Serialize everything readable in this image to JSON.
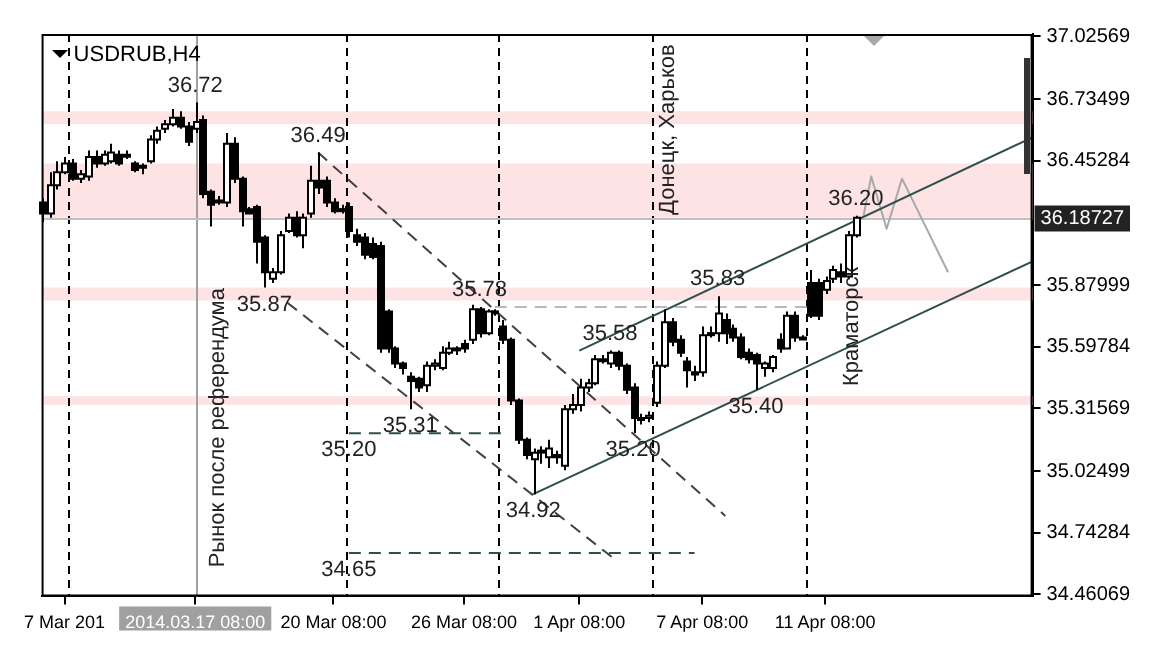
{
  "chart_data": {
    "type": "candlestick",
    "title": "USDRUB,H4",
    "categories": [
      null,
      null,
      null,
      "7 Mar 201",
      null,
      null,
      null,
      null,
      null,
      null,
      null,
      null,
      null,
      null,
      null,
      null,
      null,
      null,
      null,
      null,
      "2014.03.17 08:00",
      null,
      null,
      null,
      null,
      null,
      null,
      null,
      null,
      null,
      null,
      null,
      null,
      null,
      null,
      null,
      null,
      null,
      "20 Mar 08:00",
      null,
      null,
      null,
      null,
      null,
      null,
      null,
      null,
      null,
      null,
      null,
      null,
      null,
      null,
      null,
      null,
      "26 Mar 08:00",
      null,
      null,
      null,
      null,
      null,
      null,
      null,
      null,
      null,
      null,
      null,
      null,
      null,
      null,
      "1 Apr 08:00",
      null,
      null,
      null,
      null,
      null,
      null,
      null,
      null,
      null,
      null,
      null,
      null,
      null,
      null,
      null,
      "7 Apr 08:00",
      null,
      null,
      null,
      null,
      null,
      null,
      null,
      null,
      null,
      null,
      null,
      null,
      null,
      null,
      null,
      "11 Apr 08:00",
      null,
      null,
      null,
      null,
      null,
      null,
      null,
      null,
      null,
      null,
      null,
      null,
      null,
      null,
      null,
      null,
      null,
      null,
      null,
      null,
      null,
      null,
      null,
      null,
      null,
      null,
      null
    ],
    "ohlc": [
      [
        36.26,
        36.28,
        36.17,
        36.21
      ],
      [
        36.21,
        36.4,
        36.19,
        36.34
      ],
      [
        36.34,
        36.45,
        36.32,
        36.4
      ],
      [
        36.4,
        36.47,
        36.39,
        36.44
      ],
      [
        36.44,
        36.46,
        36.36,
        36.37
      ],
      [
        36.37,
        36.41,
        36.35,
        36.39
      ],
      [
        36.38,
        36.5,
        36.36,
        36.47
      ],
      [
        36.47,
        36.5,
        36.42,
        36.44
      ],
      [
        36.44,
        36.5,
        36.43,
        36.48
      ],
      [
        36.45,
        36.53,
        36.44,
        36.49
      ],
      [
        36.48,
        36.5,
        36.43,
        36.44
      ],
      [
        36.48,
        36.5,
        36.46,
        36.48
      ],
      [
        36.44,
        36.45,
        36.4,
        36.41
      ],
      [
        36.43,
        36.44,
        36.39,
        36.42
      ],
      [
        36.45,
        36.57,
        36.44,
        36.55
      ],
      [
        36.55,
        36.61,
        36.53,
        36.59
      ],
      [
        36.6,
        36.64,
        36.58,
        36.62
      ],
      [
        36.62,
        36.69,
        36.61,
        36.65
      ],
      [
        36.65,
        36.68,
        36.6,
        36.61
      ],
      [
        36.61,
        36.63,
        36.52,
        36.54
      ],
      [
        36.6,
        36.72,
        36.58,
        36.63
      ],
      [
        36.64,
        36.66,
        36.28,
        36.3
      ],
      [
        36.31,
        36.32,
        36.15,
        36.25
      ],
      [
        36.27,
        36.29,
        36.25,
        36.27
      ],
      [
        36.26,
        36.58,
        36.24,
        36.53
      ],
      [
        36.53,
        36.56,
        36.35,
        36.37
      ],
      [
        36.37,
        36.38,
        36.15,
        36.22
      ],
      [
        36.23,
        36.24,
        36.21,
        36.21
      ],
      [
        36.24,
        36.25,
        35.98,
        36.08
      ],
      [
        36.1,
        36.11,
        35.87,
        35.94
      ],
      [
        35.91,
        35.96,
        35.89,
        35.94
      ],
      [
        35.94,
        36.13,
        35.93,
        36.11
      ],
      [
        36.13,
        36.21,
        36.12,
        36.19
      ],
      [
        36.19,
        36.22,
        36.1,
        36.11
      ],
      [
        36.11,
        36.21,
        36.05,
        36.19
      ],
      [
        36.21,
        36.43,
        36.19,
        36.36
      ],
      [
        36.36,
        36.49,
        36.3,
        36.33
      ],
      [
        36.36,
        36.38,
        36.24,
        36.26
      ],
      [
        36.26,
        36.28,
        36.21,
        36.22
      ],
      [
        36.23,
        36.25,
        36.21,
        36.23
      ],
      [
        36.24,
        36.26,
        36.1,
        36.13
      ],
      [
        36.11,
        36.14,
        36.06,
        36.08
      ],
      [
        36.1,
        36.12,
        36.0,
        36.02
      ],
      [
        36.07,
        36.1,
        36.0,
        36.01
      ],
      [
        36.06,
        36.08,
        35.57,
        35.59
      ],
      [
        35.76,
        35.77,
        35.57,
        35.59
      ],
      [
        35.59,
        35.6,
        35.5,
        35.52
      ],
      [
        35.52,
        35.53,
        35.47,
        35.5
      ],
      [
        35.46,
        35.48,
        35.31,
        35.44
      ],
      [
        35.45,
        35.46,
        35.39,
        35.41
      ],
      [
        35.42,
        35.53,
        35.39,
        35.51
      ],
      [
        35.51,
        35.54,
        35.49,
        35.52
      ],
      [
        35.5,
        35.6,
        35.49,
        35.57
      ],
      [
        35.57,
        35.62,
        35.56,
        35.59
      ],
      [
        35.59,
        35.6,
        35.56,
        35.59
      ],
      [
        35.61,
        35.63,
        35.57,
        35.59
      ],
      [
        35.63,
        35.79,
        35.61,
        35.77
      ],
      [
        35.77,
        35.78,
        35.64,
        35.66
      ],
      [
        35.66,
        35.77,
        35.65,
        35.76
      ],
      [
        35.76,
        35.77,
        35.74,
        35.76
      ],
      [
        35.69,
        35.72,
        35.61,
        35.63
      ],
      [
        35.63,
        35.64,
        35.33,
        35.35
      ],
      [
        35.35,
        35.36,
        35.15,
        35.17
      ],
      [
        35.17,
        35.18,
        35.08,
        35.1
      ],
      [
        35.08,
        35.13,
        34.92,
        35.11
      ],
      [
        35.12,
        35.14,
        35.06,
        35.12
      ],
      [
        35.09,
        35.17,
        35.04,
        35.13
      ],
      [
        35.1,
        35.12,
        35.06,
        35.09
      ],
      [
        35.05,
        35.33,
        35.03,
        35.31
      ],
      [
        35.31,
        35.38,
        35.29,
        35.33
      ],
      [
        35.33,
        35.45,
        35.3,
        35.41
      ],
      [
        35.41,
        35.45,
        35.39,
        35.43
      ],
      [
        35.43,
        35.56,
        35.42,
        35.54
      ],
      [
        35.54,
        35.56,
        35.52,
        35.54
      ],
      [
        35.52,
        35.58,
        35.5,
        35.57
      ],
      [
        35.57,
        35.58,
        35.49,
        35.51
      ],
      [
        35.51,
        35.52,
        35.38,
        35.4
      ],
      [
        35.41,
        35.43,
        35.2,
        35.27
      ],
      [
        35.27,
        35.29,
        35.24,
        35.27
      ],
      [
        35.27,
        35.3,
        35.25,
        35.28
      ],
      [
        35.34,
        35.53,
        35.32,
        35.51
      ],
      [
        35.51,
        35.77,
        35.5,
        35.71
      ],
      [
        35.71,
        35.73,
        35.6,
        35.62
      ],
      [
        35.63,
        35.65,
        35.55,
        35.57
      ],
      [
        35.53,
        35.55,
        35.41,
        35.49
      ],
      [
        35.48,
        35.51,
        35.44,
        35.47
      ],
      [
        35.48,
        35.69,
        35.46,
        35.65
      ],
      [
        35.66,
        35.69,
        35.64,
        35.66
      ],
      [
        35.66,
        35.83,
        35.62,
        35.75
      ],
      [
        35.72,
        35.75,
        35.61,
        35.66
      ],
      [
        35.68,
        35.7,
        35.62,
        35.64
      ],
      [
        35.64,
        35.66,
        35.54,
        35.55
      ],
      [
        35.57,
        35.59,
        35.52,
        35.54
      ],
      [
        35.56,
        35.57,
        35.4,
        35.52
      ],
      [
        35.5,
        35.53,
        35.46,
        35.52
      ],
      [
        35.5,
        35.56,
        35.48,
        35.55
      ],
      [
        35.63,
        35.66,
        35.57,
        35.59
      ],
      [
        35.59,
        35.76,
        35.59,
        35.74
      ],
      [
        35.74,
        35.76,
        35.62,
        35.64
      ],
      [
        35.64,
        35.65,
        35.63,
        35.64
      ],
      [
        35.89,
        35.95,
        35.73,
        35.74
      ],
      [
        35.89,
        35.91,
        35.72,
        35.74
      ],
      [
        35.86,
        35.92,
        35.84,
        35.9
      ],
      [
        35.91,
        35.97,
        35.89,
        35.95
      ],
      [
        35.94,
        35.98,
        35.89,
        35.92
      ],
      [
        35.92,
        36.13,
        35.91,
        36.11
      ],
      [
        36.11,
        36.2,
        36.1,
        36.19
      ],
      null,
      null,
      null,
      null,
      null,
      null,
      null,
      null,
      null,
      null,
      null,
      null,
      null,
      null,
      null,
      null,
      null,
      null,
      null,
      null,
      null,
      null,
      null
    ],
    "series": [
      {
        "type": "line",
        "color": "#2f4f4f",
        "values": [
          null,
          null,
          null,
          null,
          null,
          null,
          null,
          null,
          null,
          null,
          null,
          null,
          null,
          null,
          null,
          null,
          null,
          null,
          null,
          null,
          null,
          null,
          null,
          null,
          null,
          null,
          null,
          null,
          null,
          null,
          null,
          null,
          null,
          null,
          null,
          null,
          null,
          null,
          null,
          null,
          null,
          null,
          null,
          null,
          null,
          null,
          null,
          null,
          null,
          null,
          null,
          null,
          null,
          null,
          null,
          null,
          null,
          null,
          null,
          null,
          null,
          null,
          null,
          null,
          null,
          null,
          null,
          null,
          null,
          null,
          35.58,
          null,
          null,
          null,
          null,
          null,
          null,
          null,
          null,
          null,
          null,
          null,
          null,
          null,
          null,
          null,
          null,
          null,
          null,
          null,
          null,
          null,
          null,
          null,
          null,
          null,
          null,
          null,
          null,
          null,
          null,
          null,
          null,
          null,
          null,
          null,
          null,
          null,
          null,
          null,
          null,
          null,
          null,
          null,
          null,
          null,
          null,
          null,
          null,
          null,
          null,
          null,
          null,
          null,
          null,
          null,
          null,
          null,
          null,
          36.56
        ]
      },
      {
        "type": "line",
        "color": "#2f4f4f",
        "values": [
          null,
          null,
          null,
          null,
          null,
          null,
          null,
          null,
          null,
          null,
          null,
          null,
          null,
          null,
          null,
          null,
          null,
          null,
          null,
          null,
          null,
          null,
          null,
          null,
          null,
          null,
          null,
          null,
          null,
          null,
          null,
          null,
          null,
          null,
          null,
          null,
          null,
          null,
          null,
          null,
          null,
          null,
          null,
          null,
          null,
          null,
          null,
          null,
          null,
          null,
          null,
          null,
          null,
          null,
          null,
          null,
          null,
          null,
          null,
          null,
          null,
          null,
          null,
          null,
          34.92,
          null,
          null,
          null,
          null,
          null,
          null,
          null,
          null,
          null,
          null,
          null,
          null,
          null,
          null,
          null,
          null,
          null,
          null,
          null,
          null,
          null,
          null,
          null,
          null,
          null,
          null,
          null,
          null,
          null,
          null,
          null,
          null,
          null,
          null,
          null,
          null,
          null,
          null,
          null,
          null,
          null,
          null,
          null,
          null,
          null,
          null,
          null,
          null,
          null,
          null,
          null,
          null,
          null,
          null,
          null,
          null,
          null,
          null,
          null,
          null,
          null,
          null,
          null,
          null,
          35.99
        ]
      },
      {
        "type": "line",
        "color": "#404040",
        "line_style": "dashed",
        "values": [
          null,
          null,
          null,
          null,
          null,
          null,
          null,
          null,
          null,
          null,
          null,
          null,
          null,
          null,
          null,
          null,
          null,
          null,
          null,
          null,
          null,
          null,
          null,
          null,
          null,
          null,
          null,
          null,
          null,
          null,
          null,
          null,
          null,
          null,
          null,
          null,
          36.49,
          null,
          null,
          null,
          null,
          null,
          null,
          null,
          null,
          null,
          null,
          null,
          null,
          null,
          null,
          null,
          null,
          null,
          null,
          null,
          null,
          null,
          null,
          null,
          null,
          null,
          null,
          null,
          null,
          null,
          null,
          null,
          null,
          null,
          null,
          null,
          null,
          null,
          null,
          null,
          null,
          null,
          null,
          null,
          null,
          null,
          null,
          null,
          null,
          null,
          null,
          null,
          null,
          34.82,
          null,
          null,
          null,
          null,
          null,
          null,
          null,
          null,
          null,
          null,
          null,
          null,
          null,
          null,
          null,
          null,
          null,
          null,
          null,
          null,
          null,
          null,
          null,
          null,
          null,
          null,
          null,
          null,
          null,
          null,
          null,
          null,
          null,
          null,
          null,
          null,
          null,
          null,
          null,
          null
        ]
      },
      {
        "type": "line",
        "color": "#404040",
        "line_style": "dashed",
        "values": [
          null,
          null,
          null,
          null,
          null,
          null,
          null,
          null,
          null,
          null,
          null,
          null,
          null,
          null,
          null,
          null,
          null,
          null,
          null,
          null,
          null,
          null,
          null,
          null,
          null,
          null,
          null,
          null,
          null,
          null,
          null,
          null,
          35.8,
          null,
          null,
          null,
          null,
          null,
          null,
          null,
          null,
          null,
          null,
          null,
          null,
          null,
          null,
          null,
          null,
          null,
          null,
          null,
          null,
          null,
          null,
          null,
          null,
          null,
          null,
          null,
          null,
          null,
          null,
          null,
          null,
          null,
          null,
          null,
          null,
          null,
          null,
          null,
          null,
          null,
          null,
          34.61,
          null,
          null,
          null,
          null,
          null,
          null,
          null,
          null,
          null,
          null,
          null,
          null,
          null,
          null,
          null,
          null,
          null,
          null,
          null,
          null,
          null,
          null,
          null,
          null,
          null,
          null,
          null,
          null,
          null,
          null,
          null,
          null,
          null,
          null,
          null,
          null,
          null,
          null,
          null,
          null,
          null,
          null,
          null,
          null,
          null,
          null,
          null,
          null,
          null,
          null,
          null,
          null,
          null,
          null
        ]
      },
      {
        "type": "line",
        "color": "#2f4f4f",
        "line_style": "dashed",
        "values": [
          null,
          null,
          null,
          null,
          null,
          null,
          null,
          null,
          null,
          null,
          null,
          null,
          null,
          null,
          null,
          null,
          null,
          null,
          null,
          null,
          null,
          null,
          null,
          null,
          null,
          null,
          null,
          null,
          null,
          null,
          null,
          null,
          null,
          null,
          null,
          null,
          null,
          null,
          null,
          null,
          35.2,
          null,
          null,
          null,
          null,
          null,
          null,
          null,
          null,
          null,
          null,
          null,
          null,
          null,
          null,
          null,
          null,
          null,
          null,
          null,
          35.2,
          null,
          null,
          null,
          null,
          null,
          null,
          null,
          null,
          null,
          null,
          null,
          null,
          null,
          null,
          null,
          null,
          null,
          null,
          null,
          null,
          null,
          null,
          null,
          null,
          null,
          null,
          null,
          null,
          null,
          null,
          null,
          null,
          null,
          null,
          null,
          null,
          null,
          null,
          null,
          null,
          null,
          null,
          null,
          null,
          null,
          null,
          null,
          null,
          null,
          null,
          null,
          null,
          null,
          null,
          null,
          null,
          null,
          null,
          null,
          null,
          null,
          null,
          null,
          null,
          null,
          null,
          null,
          null,
          null
        ]
      },
      {
        "type": "line",
        "color": "#2f4f4f",
        "line_style": "dashed",
        "values": [
          null,
          null,
          null,
          null,
          null,
          null,
          null,
          null,
          null,
          null,
          null,
          null,
          null,
          null,
          null,
          null,
          null,
          null,
          null,
          null,
          null,
          null,
          null,
          null,
          null,
          null,
          null,
          null,
          null,
          null,
          null,
          null,
          null,
          null,
          null,
          null,
          null,
          null,
          null,
          null,
          34.65,
          null,
          null,
          null,
          null,
          null,
          null,
          null,
          null,
          null,
          null,
          null,
          null,
          null,
          null,
          null,
          null,
          null,
          null,
          null,
          null,
          null,
          null,
          null,
          null,
          null,
          null,
          null,
          null,
          null,
          null,
          null,
          null,
          null,
          null,
          null,
          null,
          null,
          null,
          null,
          null,
          null,
          null,
          null,
          null,
          34.65,
          null,
          null,
          null,
          null,
          null,
          null,
          null,
          null,
          null,
          null,
          null,
          null,
          null,
          null,
          null,
          null,
          null,
          null,
          null,
          null,
          null,
          null,
          null,
          null,
          null,
          null,
          null,
          null,
          null,
          null,
          null,
          null,
          null,
          null,
          null,
          null,
          null,
          null,
          null,
          null,
          null,
          null,
          null,
          null
        ]
      },
      {
        "type": "line",
        "color": "#b8b8b8",
        "line_style": "dashed",
        "values": [
          null,
          null,
          null,
          null,
          null,
          null,
          null,
          null,
          null,
          null,
          null,
          null,
          null,
          null,
          null,
          null,
          null,
          null,
          null,
          null,
          null,
          null,
          null,
          null,
          null,
          null,
          null,
          null,
          null,
          null,
          null,
          null,
          null,
          null,
          null,
          null,
          null,
          null,
          null,
          null,
          null,
          null,
          null,
          null,
          null,
          null,
          null,
          null,
          null,
          null,
          null,
          null,
          null,
          null,
          null,
          null,
          null,
          null,
          null,
          35.78,
          null,
          null,
          null,
          null,
          null,
          null,
          null,
          null,
          null,
          null,
          null,
          null,
          null,
          null,
          null,
          null,
          null,
          null,
          null,
          null,
          null,
          null,
          null,
          null,
          null,
          null,
          null,
          null,
          null,
          null,
          null,
          null,
          null,
          null,
          null,
          null,
          null,
          null,
          null,
          null,
          35.78,
          null,
          null,
          null,
          null,
          null,
          null,
          null,
          null,
          null,
          null,
          null,
          null,
          null,
          null,
          null,
          null,
          null,
          null,
          null,
          null,
          null,
          null,
          null,
          null,
          null,
          null,
          null,
          null,
          null
        ]
      },
      {
        "type": "line",
        "color": "#a8a8a8",
        "values": [
          null,
          null,
          null,
          null,
          null,
          null,
          null,
          null,
          null,
          null,
          null,
          null,
          null,
          null,
          null,
          null,
          null,
          null,
          null,
          null,
          null,
          null,
          null,
          null,
          null,
          null,
          null,
          null,
          null,
          null,
          null,
          null,
          null,
          null,
          null,
          null,
          null,
          null,
          null,
          null,
          null,
          null,
          null,
          null,
          null,
          null,
          null,
          null,
          null,
          null,
          null,
          null,
          null,
          null,
          null,
          null,
          null,
          null,
          null,
          null,
          null,
          null,
          null,
          null,
          null,
          null,
          null,
          null,
          null,
          null,
          null,
          null,
          null,
          null,
          null,
          null,
          null,
          null,
          null,
          null,
          null,
          null,
          null,
          null,
          null,
          null,
          null,
          null,
          null,
          null,
          null,
          null,
          null,
          null,
          null,
          null,
          null,
          null,
          null,
          null,
          null,
          null,
          null,
          null,
          null,
          null,
          null,
          36.2,
          36.38,
          null,
          36.14,
          null,
          36.37,
          null,
          null,
          null,
          null,
          null,
          35.94,
          null,
          null,
          null,
          null,
          null,
          null,
          null,
          null,
          null,
          null,
          null
        ]
      }
    ],
    "bands": [
      {
        "axis": "y",
        "from": 36.62,
        "to": 36.68,
        "color": "#fde3e3"
      },
      {
        "axis": "y",
        "from": 36.19,
        "to": 36.44,
        "color": "#fde3e3"
      },
      {
        "axis": "y",
        "from": 35.81,
        "to": 35.87,
        "color": "#fde3e3"
      },
      {
        "axis": "y",
        "from": 35.33,
        "to": 35.37,
        "color": "#fde3e3"
      }
    ],
    "ref_lines": [
      {
        "axis": "x",
        "value": "2014.03.17 08:00",
        "color": "#a0a0a0"
      },
      {
        "axis": "y",
        "value": 36.18727,
        "label": "36.18727",
        "color": "#c0c0c0"
      }
    ],
    "annotations": [
      "Рынок после референдума",
      "Донецк, Харьков",
      "Краматорск",
      {
        "text": "36.72",
        "y": 36.72
      },
      {
        "text": "36.49",
        "y": 36.49
      },
      {
        "text": "35.87",
        "y": 35.87
      },
      {
        "text": "35.78",
        "y": 35.78
      },
      {
        "text": "35.31",
        "y": 35.31
      },
      {
        "text": "35.20",
        "y": 35.2
      },
      {
        "text": "34.65",
        "y": 34.65
      },
      {
        "text": "34.92",
        "y": 34.92
      },
      {
        "text": "35.58",
        "y": 35.58
      },
      {
        "text": "35.20",
        "y": 35.2
      },
      {
        "text": "35.83",
        "y": 35.83
      },
      {
        "text": "35.40",
        "y": 35.4
      },
      {
        "text": "36.20",
        "y": 36.2
      }
    ],
    "ylim": [
      34.45,
      37.035
    ],
    "yticks": [
      37.02569,
      36.73499,
      36.45284,
      35.87999,
      35.59784,
      35.31569,
      35.02499,
      34.74284,
      34.46069
    ]
  }
}
